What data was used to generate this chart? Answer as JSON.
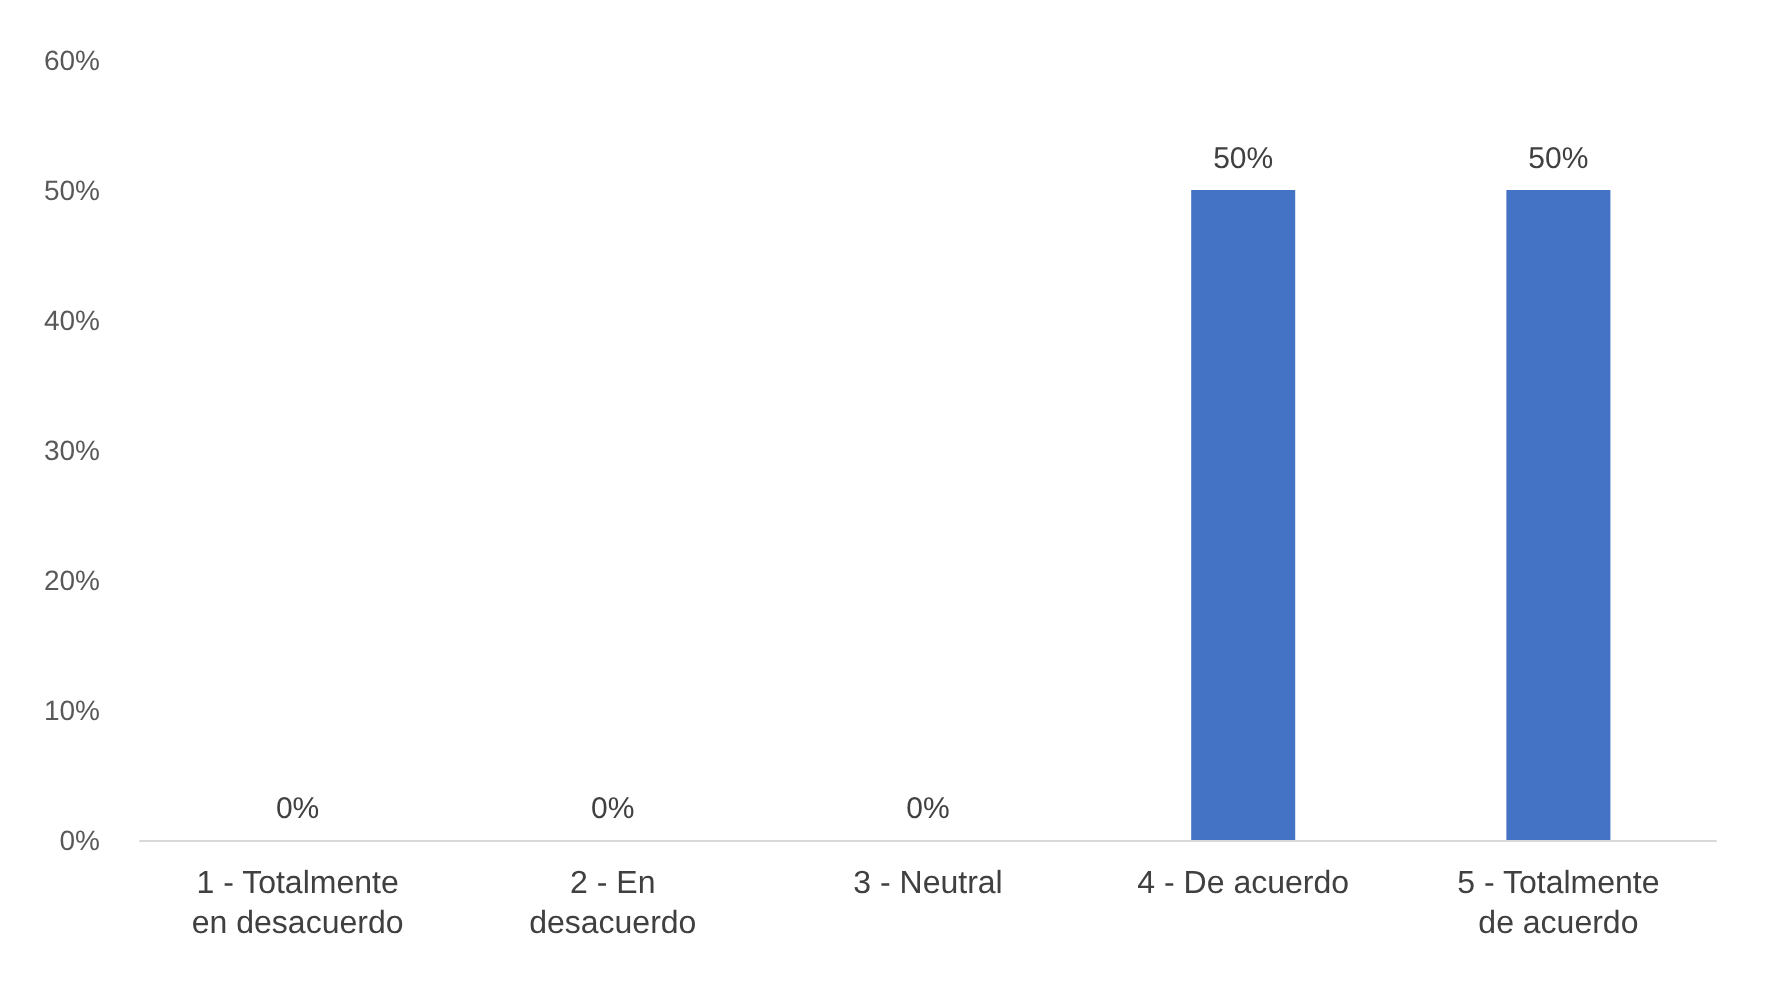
{
  "chart_data": {
    "type": "bar",
    "categories": [
      "1 - Totalmente\nen desacuerdo",
      "2 - En\ndesacuerdo",
      "3 - Neutral",
      "4 - De acuerdo",
      "5 - Totalmente\nde acuerdo"
    ],
    "values": [
      0,
      0,
      0,
      50,
      50
    ],
    "value_labels": [
      "0%",
      "0%",
      "0%",
      "50%",
      "50%"
    ],
    "color": "#4472c4",
    "ylim": [
      0,
      60
    ],
    "yticks": [
      {
        "value": 0,
        "label": "0%"
      },
      {
        "value": 10,
        "label": "10%"
      },
      {
        "value": 20,
        "label": "20%"
      },
      {
        "value": 30,
        "label": "30%"
      },
      {
        "value": 40,
        "label": "40%"
      },
      {
        "value": 50,
        "label": "50%"
      },
      {
        "value": 60,
        "label": "60%"
      }
    ],
    "grid": false
  }
}
